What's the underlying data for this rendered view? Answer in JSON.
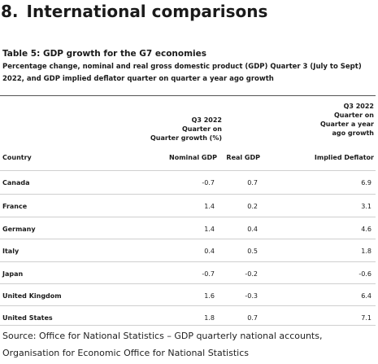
{
  "heading": {
    "number": "8.",
    "text": "International comparisons"
  },
  "table": {
    "title": "Table 5: GDP growth for the G7 economies",
    "subtitle": "Percentage change, nominal and real gross domestic product (GDP) Quarter 3 (July to Sept) 2022, and GDP implied deflator quarter on quarter a year ago growth",
    "group_header_1": [
      "Q3 2022",
      "Quarter on",
      "Quarter growth (%)"
    ],
    "group_header_2": [
      "Q3 2022",
      "Quarter on",
      "Quarter a year",
      "ago growth"
    ],
    "columns": {
      "country": "Country",
      "nominal": "Nominal GDP",
      "real": "Real GDP",
      "implied": "Implied Deflator"
    },
    "rows": [
      {
        "country": "Canada",
        "nominal": "-0.7",
        "real": "0.7",
        "implied": "6.9"
      },
      {
        "country": "France",
        "nominal": "1.4",
        "real": "0.2",
        "implied": "3.1"
      },
      {
        "country": "Germany",
        "nominal": "1.4",
        "real": "0.4",
        "implied": "4.6"
      },
      {
        "country": "Italy",
        "nominal": "0.4",
        "real": "0.5",
        "implied": "1.8"
      },
      {
        "country": "Japan",
        "nominal": "-0.7",
        "real": "-0.2",
        "implied": "-0.6"
      },
      {
        "country": "United Kingdom",
        "nominal": "1.6",
        "real": "-0.3",
        "implied": "6.4"
      },
      {
        "country": "United States",
        "nominal": "1.8",
        "real": "0.7",
        "implied": "7.1"
      }
    ]
  },
  "source": "Source: Office for National Statistics – GDP quarterly national accounts, Organisation for Economic Office for National Statistics"
}
